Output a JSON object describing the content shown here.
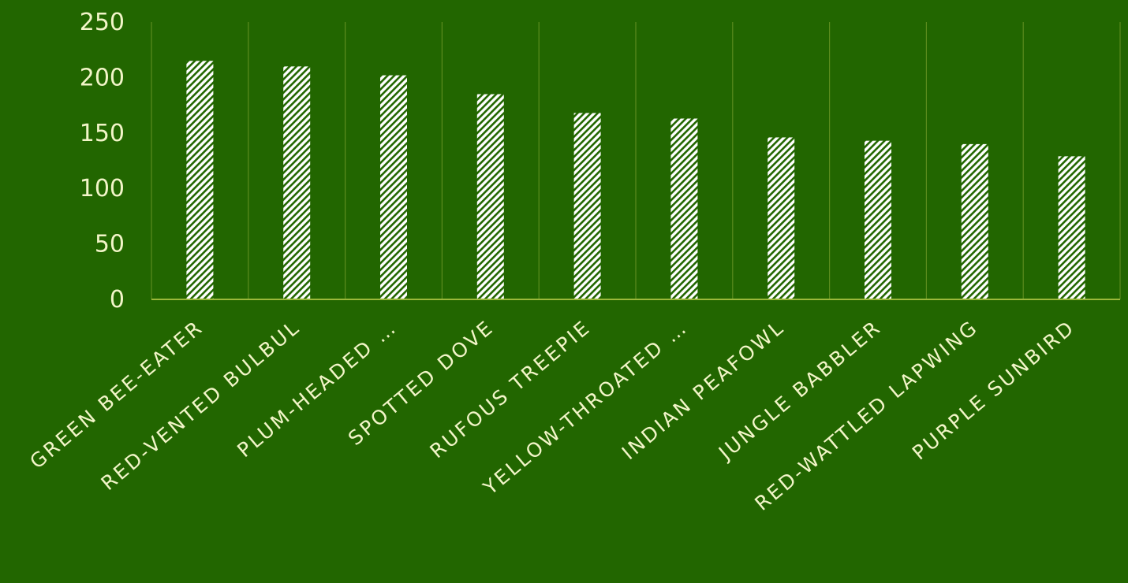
{
  "chart_data": {
    "type": "bar",
    "title": "",
    "xlabel": "",
    "ylabel": "",
    "categories": [
      "GREEN BEE-EATER",
      "RED-VENTED BULBUL",
      "PLUM-HEADED …",
      "SPOTTED DOVE",
      "RUFOUS TREEPIE",
      "YELLOW-THROATED …",
      "INDIAN PEAFOWL",
      "JUNGLE BABBLER",
      "RED-WATTLED  LAPWING",
      "PURPLE SUNBIRD"
    ],
    "values": [
      215,
      210,
      202,
      185,
      168,
      163,
      146,
      143,
      140,
      129
    ],
    "ylim": [
      0,
      250
    ],
    "yticks": [
      0,
      50,
      100,
      150,
      200,
      250
    ],
    "grid": "vertical category separators",
    "legend": "none",
    "bar_fill": "white/green diagonal hatch",
    "colors": {
      "background": "#226600",
      "bar_hatch_light": "#ffffff",
      "bar_hatch_dark": "#226600",
      "axis_line": "#9ab83a",
      "grid_line": "#5c8c1e",
      "text": "#f2f5c8"
    }
  }
}
